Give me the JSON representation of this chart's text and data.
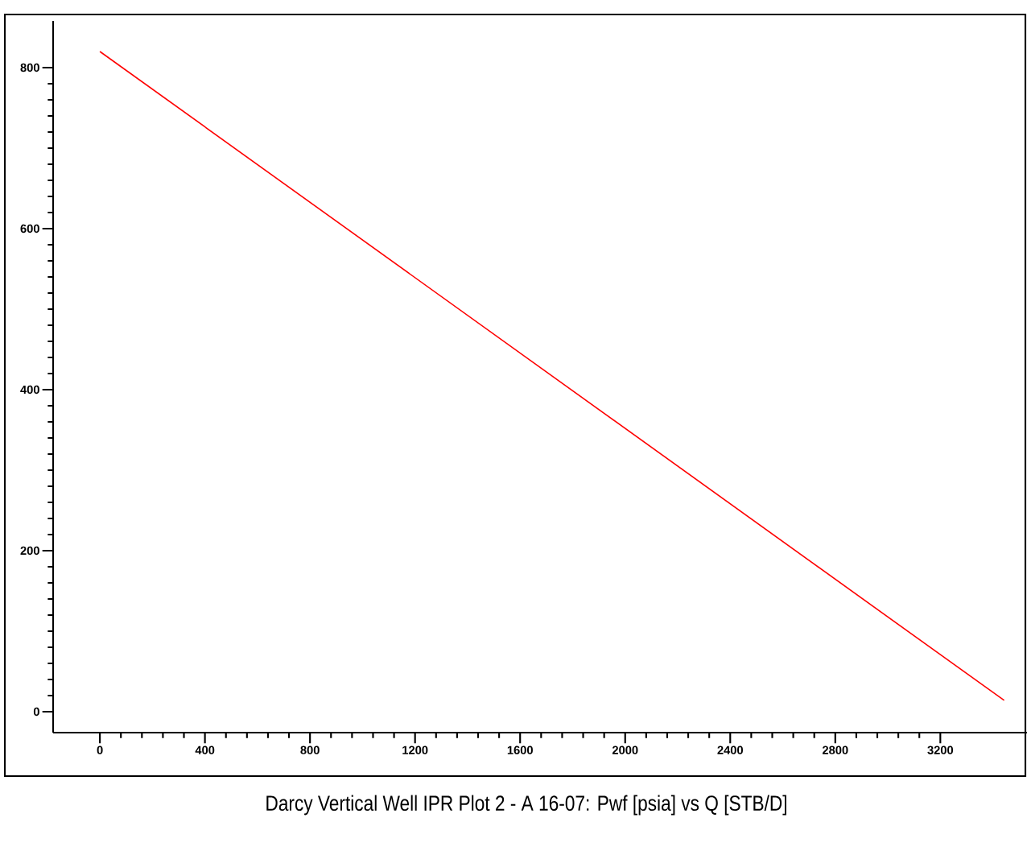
{
  "chart_data": {
    "type": "line",
    "title": "Darcy Vertical Well IPR Plot 2 - A 16-07: Pwf [psia] vs Q [STB/D]",
    "x": [
      0,
      3443
    ],
    "series": [
      {
        "color": "#ff0000",
        "values": [
          820,
          14
        ]
      }
    ],
    "xlim": [
      -178,
      3530
    ],
    "ylim": [
      -26,
      858
    ],
    "xticks": [
      0,
      400,
      800,
      1200,
      1600,
      2000,
      2400,
      2800,
      3200
    ],
    "yticks": [
      0,
      200,
      400,
      600,
      800
    ],
    "grid": false,
    "marker": "none",
    "line_style": "solid"
  }
}
